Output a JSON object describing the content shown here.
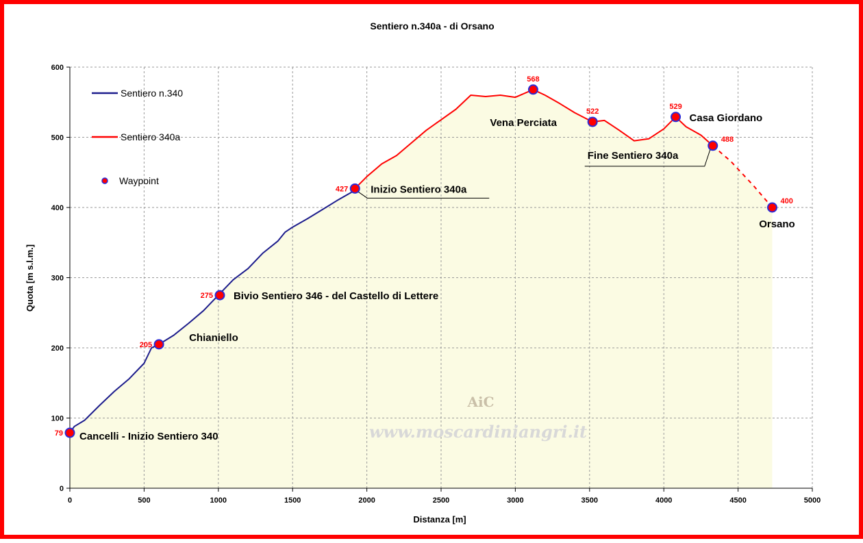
{
  "chart_data": {
    "type": "area",
    "title": "Sentiero n.340a - di Orsano",
    "xlabel": "Distanza [m]",
    "ylabel": "Quota [m s.l.m.]",
    "xlim": [
      0,
      5000
    ],
    "ylim": [
      0,
      600
    ],
    "xticks": [
      0,
      500,
      1000,
      1500,
      2000,
      2500,
      3000,
      3500,
      4000,
      4500,
      5000
    ],
    "yticks": [
      0,
      100,
      200,
      300,
      400,
      500,
      600
    ],
    "grid": true,
    "legend_position": "top-left",
    "legend": [
      {
        "label": "Sentiero n.340",
        "color": "#1c1c8c",
        "kind": "line"
      },
      {
        "label": "Sentiero 340a",
        "color": "#ff0000",
        "kind": "line"
      },
      {
        "label": "Waypoint",
        "color": "#ff0000",
        "kind": "marker"
      }
    ],
    "fill_color": "#fbfbe3",
    "series": [
      {
        "name": "Sentiero n.340",
        "color": "#1c1c8c",
        "x": [
          0,
          30,
          100,
          200,
          300,
          400,
          500,
          550,
          600,
          700,
          800,
          900,
          1000,
          1100,
          1200,
          1300,
          1400,
          1450,
          1500,
          1600,
          1700,
          1800,
          1900,
          1920
        ],
        "y": [
          79,
          88,
          97,
          118,
          138,
          156,
          178,
          200,
          205,
          218,
          235,
          253,
          275,
          297,
          313,
          335,
          352,
          365,
          372,
          384,
          397,
          410,
          422,
          427
        ]
      },
      {
        "name": "Sentiero 340a",
        "color": "#ff0000",
        "x": [
          1920,
          2000,
          2100,
          2200,
          2300,
          2400,
          2500,
          2600,
          2700,
          2800,
          2900,
          3000,
          3120,
          3200,
          3300,
          3400,
          3520,
          3600,
          3700,
          3800,
          3900,
          4000,
          4080,
          4150,
          4250,
          4330
        ],
        "y": [
          427,
          444,
          462,
          474,
          492,
          510,
          525,
          540,
          560,
          558,
          560,
          557,
          568,
          560,
          548,
          535,
          522,
          524,
          510,
          495,
          498,
          512,
          529,
          515,
          503,
          488
        ]
      },
      {
        "name": "dashed",
        "color": "#ff0000",
        "dashed": true,
        "x": [
          4330,
          4450,
          4600,
          4730
        ],
        "y": [
          488,
          466,
          432,
          400
        ]
      }
    ],
    "waypoints": [
      {
        "x": 0,
        "y": 79,
        "value": "79",
        "label": "Cancelli - Inizio Sentiero 340",
        "label_pos": "right-below"
      },
      {
        "x": 600,
        "y": 205,
        "value": "205",
        "label": "Chianiello",
        "label_pos": "right-above"
      },
      {
        "x": 1010,
        "y": 275,
        "value": "275",
        "label": "Bivio Sentiero 346 - del Castello di Lettere",
        "label_pos": "right"
      },
      {
        "x": 1920,
        "y": 427,
        "value": "427",
        "label": "Inizio Sentiero 340a",
        "label_pos": "right-leader"
      },
      {
        "x": 3120,
        "y": 568,
        "value": "568",
        "label": "Vena Perciata",
        "label_pos": "below-left"
      },
      {
        "x": 3520,
        "y": 522,
        "value": "522",
        "label": "",
        "label_pos": "none"
      },
      {
        "x": 4080,
        "y": 529,
        "value": "529",
        "label": "Casa Giordano",
        "label_pos": "right"
      },
      {
        "x": 4330,
        "y": 488,
        "value": "488",
        "label": "Fine Sentiero 340a",
        "label_pos": "left-leader"
      },
      {
        "x": 4730,
        "y": 400,
        "value": "400",
        "label": "Orsano",
        "label_pos": "below"
      }
    ],
    "watermark": "www.moscardiniangri.it",
    "logo": "AiC"
  }
}
